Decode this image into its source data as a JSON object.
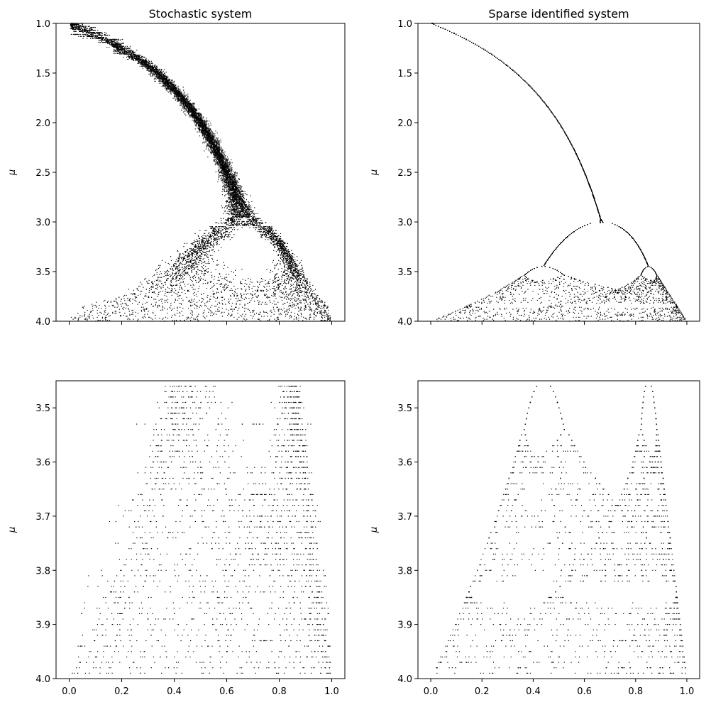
{
  "chart_data": [
    {
      "type": "scatter",
      "title": "Stochastic system",
      "xlabel": "",
      "ylabel": "μ",
      "xlim": [
        -0.05,
        1.05
      ],
      "ylim": [
        1.0,
        4.0
      ],
      "y_inverted": true,
      "xticks": [
        0.0,
        0.2,
        0.4,
        0.6,
        0.8,
        1.0
      ],
      "xtick_labels_shown": false,
      "yticks": [
        1.0,
        1.5,
        2.0,
        2.5,
        3.0,
        3.5,
        4.0
      ],
      "ytick_labels": [
        "1.0",
        "1.5",
        "2.0",
        "2.5",
        "3.0",
        "3.5",
        "4.0"
      ],
      "series_description": "bifurcation diagram of stochastic logistic map",
      "series": [
        {
          "model": "stochastic",
          "mu_range": [
            1.0,
            4.0
          ],
          "points": [
            [
              0.01,
              1.0
            ],
            [
              0.06,
              1.02
            ],
            [
              0.1,
              1.05
            ],
            [
              0.15,
              1.1
            ],
            [
              0.2,
              1.2
            ],
            [
              0.26,
              1.35
            ],
            [
              0.33,
              1.5
            ],
            [
              0.4,
              1.65
            ],
            [
              0.46,
              1.8
            ],
            [
              0.52,
              2.0
            ],
            [
              0.56,
              2.2
            ],
            [
              0.6,
              2.4
            ],
            [
              0.64,
              2.6
            ],
            [
              0.66,
              2.8
            ],
            [
              0.67,
              3.0
            ],
            [
              0.7,
              3.2
            ],
            [
              0.55,
              3.3
            ],
            [
              0.9,
              3.4
            ],
            [
              0.3,
              3.6
            ],
            [
              0.95,
              3.7
            ],
            [
              0.05,
              3.9
            ],
            [
              0.99,
              4.0
            ]
          ]
        }
      ]
    },
    {
      "type": "scatter",
      "title": "Sparse identified system",
      "xlabel": "",
      "ylabel": "μ",
      "xlim": [
        -0.05,
        1.05
      ],
      "ylim": [
        1.0,
        4.0
      ],
      "y_inverted": true,
      "xticks": [
        0.0,
        0.2,
        0.4,
        0.6,
        0.8,
        1.0
      ],
      "xtick_labels_shown": false,
      "yticks": [
        1.0,
        1.5,
        2.0,
        2.5,
        3.0,
        3.5,
        4.0
      ],
      "ytick_labels": [
        "1.0",
        "1.5",
        "2.0",
        "2.5",
        "3.0",
        "3.5",
        "4.0"
      ],
      "series_description": "bifurcation diagram of sparse identified logistic map",
      "series": [
        {
          "model": "deterministic",
          "mu_range": [
            1.0,
            4.0
          ],
          "points": [
            [
              0.0,
              1.0
            ],
            [
              0.2,
              1.25
            ],
            [
              0.33,
              1.5
            ],
            [
              0.5,
              2.0
            ],
            [
              0.6,
              2.5
            ],
            [
              0.667,
              3.0
            ],
            [
              0.45,
              3.45
            ],
            [
              0.85,
              3.5
            ],
            [
              0.3,
              3.7
            ],
            [
              0.9,
              3.8
            ],
            [
              0.05,
              3.95
            ],
            [
              0.99,
              4.0
            ]
          ]
        }
      ]
    },
    {
      "type": "scatter",
      "title": "",
      "xlabel": "",
      "ylabel": "μ",
      "xlim": [
        -0.05,
        1.05
      ],
      "ylim": [
        3.45,
        4.0
      ],
      "y_inverted": true,
      "xticks": [
        0.0,
        0.2,
        0.4,
        0.6,
        0.8,
        1.0
      ],
      "xtick_labels": [
        "0.0",
        "0.2",
        "0.4",
        "0.6",
        "0.8",
        "1.0"
      ],
      "yticks": [
        3.5,
        3.6,
        3.7,
        3.8,
        3.9,
        4.0
      ],
      "ytick_labels": [
        "3.5",
        "3.6",
        "3.7",
        "3.8",
        "3.9",
        "4.0"
      ],
      "series_description": "zoom of stochastic system for mu in [3.45, 4.0]",
      "series": [
        {
          "model": "stochastic",
          "mu_range": [
            3.46,
            3.99
          ],
          "mu_step": 0.01,
          "points": [
            [
              0.3,
              3.46
            ],
            [
              0.92,
              3.46
            ],
            [
              0.2,
              3.55
            ],
            [
              0.94,
              3.55
            ],
            [
              0.08,
              3.7
            ],
            [
              0.97,
              3.7
            ],
            [
              0.02,
              3.8
            ],
            [
              0.99,
              3.8
            ],
            [
              0.01,
              3.99
            ],
            [
              0.99,
              3.99
            ]
          ]
        }
      ]
    },
    {
      "type": "scatter",
      "title": "",
      "xlabel": "",
      "ylabel": "μ",
      "xlim": [
        -0.05,
        1.05
      ],
      "ylim": [
        3.45,
        4.0
      ],
      "y_inverted": true,
      "xticks": [
        0.0,
        0.2,
        0.4,
        0.6,
        0.8,
        1.0
      ],
      "xtick_labels": [
        "0.0",
        "0.2",
        "0.4",
        "0.6",
        "0.8",
        "1.0"
      ],
      "yticks": [
        3.5,
        3.6,
        3.7,
        3.8,
        3.9,
        4.0
      ],
      "ytick_labels": [
        "3.5",
        "3.6",
        "3.7",
        "3.8",
        "3.9",
        "4.0"
      ],
      "series_description": "zoom of sparse identified system for mu in [3.45, 4.0]",
      "series": [
        {
          "model": "deterministic",
          "mu_range": [
            3.46,
            3.99
          ],
          "mu_step": 0.01,
          "points": [
            [
              0.43,
              3.46
            ],
            [
              0.85,
              3.46
            ],
            [
              0.3,
              3.6
            ],
            [
              0.88,
              3.6
            ],
            [
              0.2,
              3.75
            ],
            [
              0.96,
              3.75
            ],
            [
              0.1,
              3.89
            ],
            [
              0.98,
              3.89
            ],
            [
              0.03,
              3.99
            ],
            [
              0.99,
              3.99
            ]
          ]
        }
      ]
    }
  ]
}
